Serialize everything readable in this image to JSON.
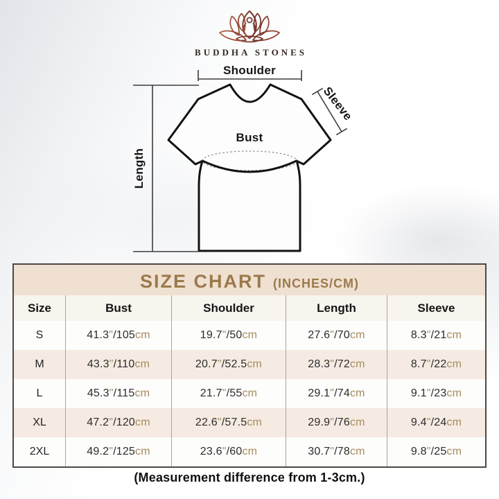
{
  "brand": {
    "name": "BUDDHA STONES",
    "logo_icon": "lotus-meditation-icon"
  },
  "diagram": {
    "labels": {
      "shoulder": "Shoulder",
      "sleeve": "Sleeve",
      "bust": "Bust",
      "length": "Length"
    }
  },
  "size_chart": {
    "title": "SIZE CHART",
    "title_suffix": "(INCHES/CM)",
    "columns": [
      "Size",
      "Bust",
      "Shoulder",
      "Length",
      "Sleeve"
    ],
    "measure_keys": [
      "bust",
      "shoulder",
      "length",
      "sleeve"
    ],
    "unit_inch_mark": "\"",
    "unit_cm": "cm",
    "rows": [
      {
        "size": "S",
        "bust": {
          "in": "41.3",
          "cm": "105"
        },
        "shoulder": {
          "in": "19.7",
          "cm": "50"
        },
        "length": {
          "in": "27.6",
          "cm": "70"
        },
        "sleeve": {
          "in": "8.3",
          "cm": "21"
        }
      },
      {
        "size": "M",
        "bust": {
          "in": "43.3",
          "cm": "110"
        },
        "shoulder": {
          "in": "20.7",
          "cm": "52.5"
        },
        "length": {
          "in": "28.3",
          "cm": "72"
        },
        "sleeve": {
          "in": "8.7",
          "cm": "22"
        }
      },
      {
        "size": "L",
        "bust": {
          "in": "45.3",
          "cm": "115"
        },
        "shoulder": {
          "in": "21.7",
          "cm": "55"
        },
        "length": {
          "in": "29.1",
          "cm": "74"
        },
        "sleeve": {
          "in": "9.1",
          "cm": "23"
        }
      },
      {
        "size": "XL",
        "bust": {
          "in": "47.2",
          "cm": "120"
        },
        "shoulder": {
          "in": "22.6",
          "cm": "57.5"
        },
        "length": {
          "in": "29.9",
          "cm": "76"
        },
        "sleeve": {
          "in": "9.4",
          "cm": "24"
        }
      },
      {
        "size": "2XL",
        "bust": {
          "in": "49.2",
          "cm": "125"
        },
        "shoulder": {
          "in": "23.6",
          "cm": "60"
        },
        "length": {
          "in": "30.7",
          "cm": "78"
        },
        "sleeve": {
          "in": "9.8",
          "cm": "25"
        }
      }
    ]
  },
  "footer": {
    "note": "(Measurement difference from 1-3cm.)"
  },
  "colors": {
    "accent_title": "#9a7a4b",
    "unit_text": "#a78a5c",
    "title_band_bg": "#f0e0d2",
    "header_row_bg": "#f8f4ee",
    "alt_row_bg": "#f5ebe2",
    "table_border": "#4c4843",
    "logo_gradient_left": "#b5684a",
    "logo_gradient_center": "#6f2f28",
    "logo_gradient_right": "#a34d36"
  }
}
